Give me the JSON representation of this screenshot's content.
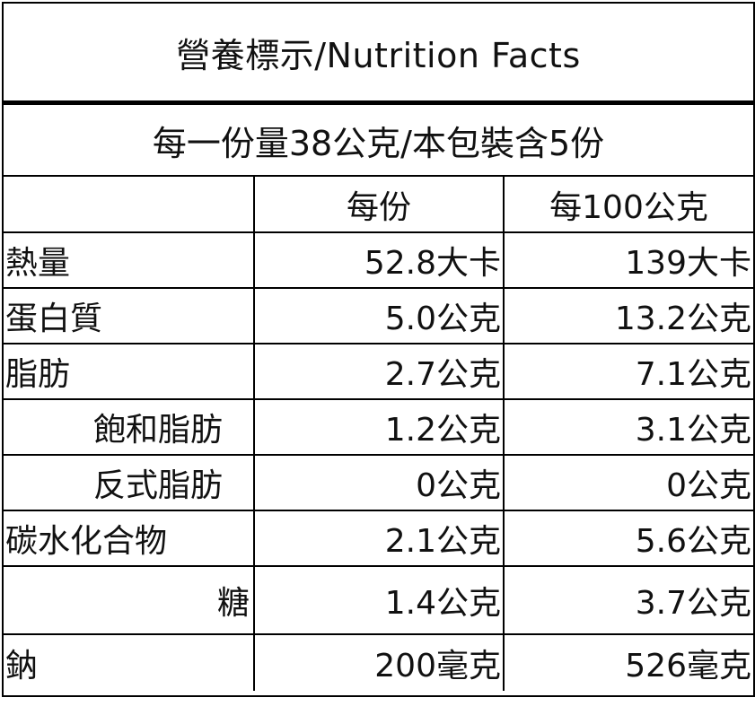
{
  "title": "營養標示/Nutrition Facts",
  "serving": "每一份量38公克/本包裝含5份",
  "columns": {
    "blank": "",
    "per_serving": "每份",
    "per_100g": "每100公克"
  },
  "rows": [
    {
      "name": "熱量",
      "per_serving": "52.8大卡",
      "per_100g": "139大卡"
    },
    {
      "name": "蛋白質",
      "per_serving": "5.0公克",
      "per_100g": "13.2公克"
    },
    {
      "name": "脂肪",
      "per_serving": "2.7公克",
      "per_100g": "7.1公克"
    },
    {
      "name": "飽和脂肪",
      "per_serving": "1.2公克",
      "per_100g": "3.1公克"
    },
    {
      "name": "反式脂肪",
      "per_serving": "0公克",
      "per_100g": "0公克"
    },
    {
      "name": "碳水化合物",
      "per_serving": "2.1公克",
      "per_100g": "5.6公克"
    },
    {
      "name": "糖",
      "per_serving": "1.4公克",
      "per_100g": "3.7公克"
    },
    {
      "name": "鈉",
      "per_serving": "200毫克",
      "per_100g": "526毫克"
    }
  ]
}
